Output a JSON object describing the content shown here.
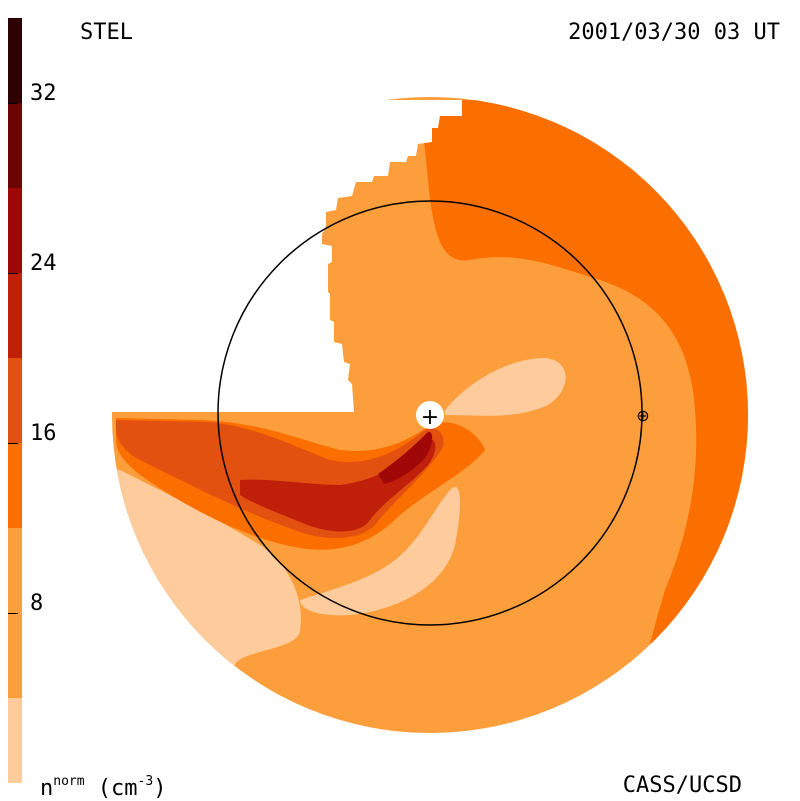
{
  "header": {
    "instrument": "STEL",
    "datetime": "2001/03/30 03 UT"
  },
  "footer": {
    "unit_main": "n",
    "unit_sup": "norm",
    "unit_rest": " (cm",
    "unit_exp": "-3",
    "unit_close": ")",
    "credit": "CASS/UCSD"
  },
  "colorbar": {
    "ticks": [
      "32",
      "24",
      "16",
      "8"
    ],
    "tick_values": [
      32,
      24,
      16,
      8
    ],
    "range": [
      0,
      36
    ],
    "bands": [
      {
        "from": 0,
        "to": 4,
        "color": "#FDCB9C"
      },
      {
        "from": 4,
        "to": 12,
        "color": "#FC9E3C"
      },
      {
        "from": 12,
        "to": 16,
        "color": "#FB6F00"
      },
      {
        "from": 16,
        "to": 20,
        "color": "#E35110"
      },
      {
        "from": 20,
        "to": 24,
        "color": "#C0200A"
      },
      {
        "from": 24,
        "to": 28,
        "color": "#A00808"
      },
      {
        "from": 28,
        "to": 32,
        "color": "#6C0404"
      },
      {
        "from": 32,
        "to": 36,
        "color": "#2E0202"
      }
    ]
  },
  "map": {
    "sun_marker": "+",
    "earth_marker": "⊕",
    "colors": {
      "level_4": "#FDCB9C",
      "level_8": "#FC9E3C",
      "level_12": "#FB6F00",
      "level_16": "#E35110",
      "level_20": "#C0200A",
      "level_24": "#A00808",
      "level_28": "#6C0404",
      "orbit": "#000000"
    }
  }
}
